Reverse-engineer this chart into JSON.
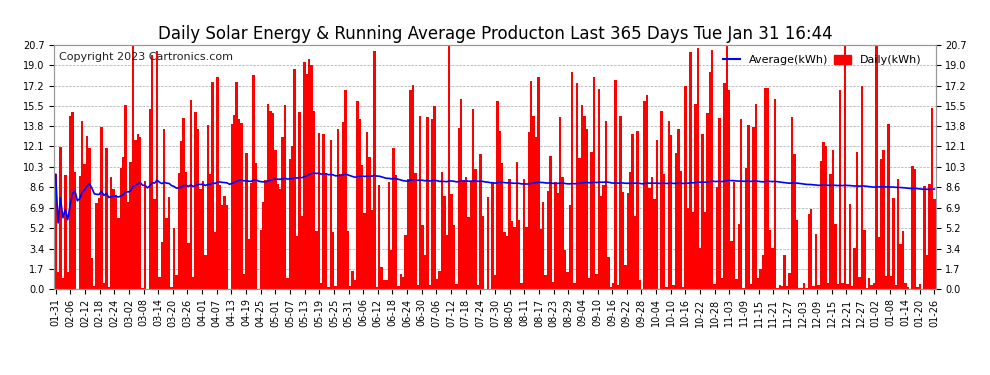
{
  "title": "Daily Solar Energy & Running Average Producton Last 365 Days Tue Jan 31 16:44",
  "copyright": "Copyright 2023 Cartronics.com",
  "legend_avg": "Average(kWh)",
  "legend_daily": "Daily(kWh)",
  "ylim": [
    0.0,
    20.7
  ],
  "yticks": [
    0.0,
    1.7,
    3.4,
    5.2,
    6.9,
    8.6,
    10.3,
    12.1,
    13.8,
    15.5,
    17.2,
    19.0,
    20.7
  ],
  "bar_color": "#ff0000",
  "avg_color": "#0000ff",
  "background_color": "#ffffff",
  "grid_color": "#aaaaaa",
  "title_color": "#000000",
  "title_fontsize": 12,
  "copyright_fontsize": 8,
  "tick_fontsize": 7,
  "x_labels": [
    "01-31",
    "02-06",
    "02-12",
    "02-18",
    "02-24",
    "03-02",
    "03-08",
    "03-14",
    "03-20",
    "03-26",
    "04-01",
    "04-07",
    "04-13",
    "04-19",
    "04-25",
    "05-01",
    "05-07",
    "05-13",
    "05-19",
    "05-25",
    "05-31",
    "06-06",
    "06-12",
    "06-18",
    "06-24",
    "06-30",
    "07-06",
    "07-12",
    "07-18",
    "07-24",
    "07-30",
    "08-05",
    "08-11",
    "08-17",
    "08-23",
    "08-29",
    "09-04",
    "09-10",
    "09-16",
    "09-22",
    "09-28",
    "10-04",
    "10-10",
    "10-16",
    "10-22",
    "10-28",
    "11-03",
    "11-09",
    "11-15",
    "11-21",
    "11-27",
    "12-03",
    "12-09",
    "12-15",
    "12-21",
    "12-27",
    "01-02",
    "01-08",
    "01-14",
    "01-20",
    "01-26"
  ],
  "num_days": 365,
  "seed": 99
}
